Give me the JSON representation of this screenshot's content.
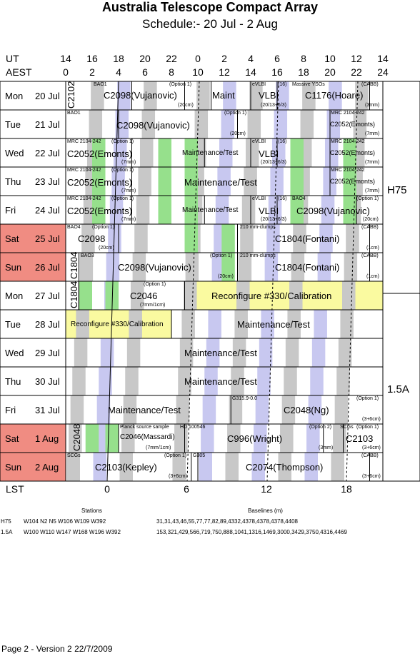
{
  "header": {
    "title": "Australia Telescope Compact Array",
    "subtitle": "Schedule:- 20 Jul - 2  Aug",
    "ut_label": "UT",
    "aest_label": "AEST",
    "lst_label": "LST",
    "ut_ticks": [
      "14",
      "16",
      "18",
      "20",
      "22",
      "0",
      "2",
      "4",
      "6",
      "8",
      "10",
      "12",
      "14"
    ],
    "aest_ticks": [
      "0",
      "2",
      "4",
      "6",
      "8",
      "10",
      "12",
      "14",
      "16",
      "18",
      "20",
      "22",
      "24"
    ],
    "lst_ticks": [
      "0",
      "6",
      "12",
      "18"
    ]
  },
  "days": [
    {
      "dow": "Mon",
      "date": "20 Jul",
      "weekend": false
    },
    {
      "dow": "Tue",
      "date": "21 Jul",
      "weekend": false
    },
    {
      "dow": "Wed",
      "date": "22 Jul",
      "weekend": false
    },
    {
      "dow": "Thu",
      "date": "23 Jul",
      "weekend": false
    },
    {
      "dow": "Fri",
      "date": "24 Jul",
      "weekend": false
    },
    {
      "dow": "Sat",
      "date": "25 Jul",
      "weekend": true
    },
    {
      "dow": "Sun",
      "date": "26 Jul",
      "weekend": true
    },
    {
      "dow": "Mon",
      "date": "27 Jul",
      "weekend": false
    },
    {
      "dow": "Tue",
      "date": "28 Jul",
      "weekend": false
    },
    {
      "dow": "Wed",
      "date": "29 Jul",
      "weekend": false
    },
    {
      "dow": "Thu",
      "date": "30 Jul",
      "weekend": false
    },
    {
      "dow": "Fri",
      "date": "31 Jul",
      "weekend": false
    },
    {
      "dow": "Sat",
      "date": "1  Aug",
      "weekend": true
    },
    {
      "dow": "Sun",
      "date": "2  Aug",
      "weekend": true
    }
  ],
  "configs": {
    "h75": "H75",
    "a15": "1.5A"
  },
  "cells": {
    "d0": {
      "a": "BAO1",
      "b": "C2098(Vujanovic)",
      "c": "(Option 1)",
      "d": "(20cm)",
      "e": "Maint",
      "f": "eVLBI",
      "g": "(16)",
      "h": "VLBI",
      "i": "(20/13+6/3)",
      "j": "Massive YSOs",
      "k": "C1176(Hoare)",
      "l": "(CABB)",
      "m": "(3mm)",
      "v": "C2102"
    },
    "d1": {
      "a": "BAO1",
      "b": "C2098(Vujanovic)",
      "c": "(Option 1)",
      "d": "(20cm)",
      "e": "MRC 2104-242",
      "f": "C2052(Emonts)",
      "g": "(7mm)"
    },
    "d2": {
      "a": "MRC 2104-242",
      "b": "C2052(Emonts)",
      "c": "(Option 1)",
      "d": "(7mm)",
      "e": "Maintenance/Test",
      "f": "eVLBI",
      "g": "(16)",
      "h": "VLBI",
      "i": "(20/13+6/3)",
      "j": "MRC 2104-242",
      "k": "C2052(Emonts)",
      "l": "(7mm)"
    },
    "d3": {
      "a": "MRC 2104-242",
      "b": "C2052(Emonts)",
      "c": "(Option 1)",
      "d": "(7mm)",
      "e": "Maintenance/Test",
      "f": "MRC 2104-242",
      "g": "C2052(Emonts)",
      "h": "(7mm)"
    },
    "d4": {
      "a": "MRC 2104-242",
      "b": "C2052(Emonts)",
      "c": "(Option 1)",
      "d": "(7mm)",
      "e": "Maintenance/Test",
      "f": "eVLBI",
      "g": "(16)",
      "h": "VLBI",
      "i": "(20/13+6/3)",
      "j": "BAO4",
      "k": "C2098(Vujanovic)",
      "l": "(Option 1)",
      "m": "(20cm)"
    },
    "d5": {
      "a": "BAO4",
      "b": "(Option 1)",
      "c": "C2098",
      "d": "(20cm)",
      "e": "210 mm-clumps",
      "f": "C1804(Fontani)",
      "g": "(CABB)",
      "h": "(1cm)"
    },
    "d6": {
      "a": "BAO3",
      "b": "C2098(Vujanovic)",
      "c": "(Option 1)",
      "d": "(20cm)",
      "e": "210 mm-clumps",
      "f": "C1804(Fontani)",
      "g": "(CABB)",
      "h": "(1cm)",
      "v": "C1804"
    },
    "d7": {
      "a": "(Option 1)",
      "b": "C2046",
      "c": "(7mm/1cm)",
      "d": "Reconfigure #330/Calibration",
      "v": "C1804"
    },
    "d8": {
      "a": "Reconfigure #330/Calibration",
      "b": "Maintenance/Test"
    },
    "d9": {
      "a": "Maintenance/Test"
    },
    "d10": {
      "a": "Maintenance/Test"
    },
    "d11": {
      "a": "Maintenance/Test",
      "b": "G315.9-0.0",
      "c": "C2048(Ng)",
      "d": "(Option 1)",
      "e": "(3+6cm)"
    },
    "d12": {
      "a": "Planck source sample",
      "b": "C2046(Massardi)",
      "c": "(7mm/1cm)",
      "d": "HD 100546",
      "e": "C996(Wright)",
      "f": "(Option 2)",
      "g": "(3mm)",
      "h": "SCGs",
      "i": "(Option 1)",
      "j": "C2103",
      "k": "(3+6cm)",
      "v": "C2048"
    },
    "d13": {
      "a": "SCGs",
      "b": "C2103(Kepley)",
      "c": "(Option 1)",
      "d": "(3+6cm)",
      "e": "G305",
      "f": "C2074(Thompson)",
      "g": "(CABB)",
      "h": "(3+6cm)"
    }
  },
  "footer": {
    "stations_label": "Stations",
    "baselines_label": "Baselines (m)",
    "rows": [
      {
        "config": "H75",
        "stations": "W104 N2 N5 W106 W109 W392",
        "baselines": "31,31,43,46,55,77,77,82,89,4332,4378,4378,4378,4408"
      },
      {
        "config": "1.5A",
        "stations": "W100 W110 W147 W168 W196 W392",
        "baselines": "153,321,429,566,719,750,888,1041,1316,1469,3000,3429,3750,4316,4469"
      }
    ],
    "page_info": "Page 2 - Version 2  22/7/2009"
  },
  "colors": {
    "grey": "#c8c8c8",
    "blue": "#c8c8f0",
    "green": "#96e08c",
    "yellow": "#fafaa0",
    "weekend": "#f08c82"
  }
}
